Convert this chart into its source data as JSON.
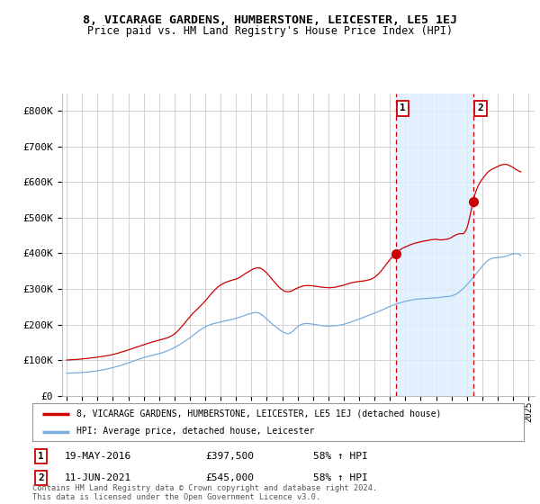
{
  "title": "8, VICARAGE GARDENS, HUMBERSTONE, LEICESTER, LE5 1EJ",
  "subtitle": "Price paid vs. HM Land Registry's House Price Index (HPI)",
  "background_color": "#ffffff",
  "grid_color": "#cccccc",
  "plot_bg": "#ffffff",
  "red_color": "#cc0000",
  "blue_color": "#7aacdc",
  "shade_color": "#ddeeff",
  "ylim": [
    0,
    850000
  ],
  "yticks": [
    0,
    100000,
    200000,
    300000,
    400000,
    500000,
    600000,
    700000,
    800000
  ],
  "ytick_labels": [
    "£0",
    "£100K",
    "£200K",
    "£300K",
    "£400K",
    "£500K",
    "£600K",
    "£700K",
    "£800K"
  ],
  "xtick_years": [
    1995,
    1996,
    1997,
    1998,
    1999,
    2000,
    2001,
    2002,
    2003,
    2004,
    2005,
    2006,
    2007,
    2008,
    2009,
    2010,
    2011,
    2012,
    2013,
    2014,
    2015,
    2016,
    2017,
    2018,
    2019,
    2020,
    2021,
    2022,
    2023,
    2024,
    2025
  ],
  "sale1_x": 2016.38,
  "sale1_y": 397500,
  "sale2_x": 2021.44,
  "sale2_y": 545000,
  "annotation1": [
    "1",
    "19-MAY-2016",
    "£397,500",
    "58% ↑ HPI"
  ],
  "annotation2": [
    "2",
    "11-JUN-2021",
    "£545,000",
    "58% ↑ HPI"
  ],
  "legend_line1": "8, VICARAGE GARDENS, HUMBERSTONE, LEICESTER, LE5 1EJ (detached house)",
  "legend_line2": "HPI: Average price, detached house, Leicester",
  "footer": "Contains HM Land Registry data © Crown copyright and database right 2024.\nThis data is licensed under the Open Government Licence v3.0."
}
